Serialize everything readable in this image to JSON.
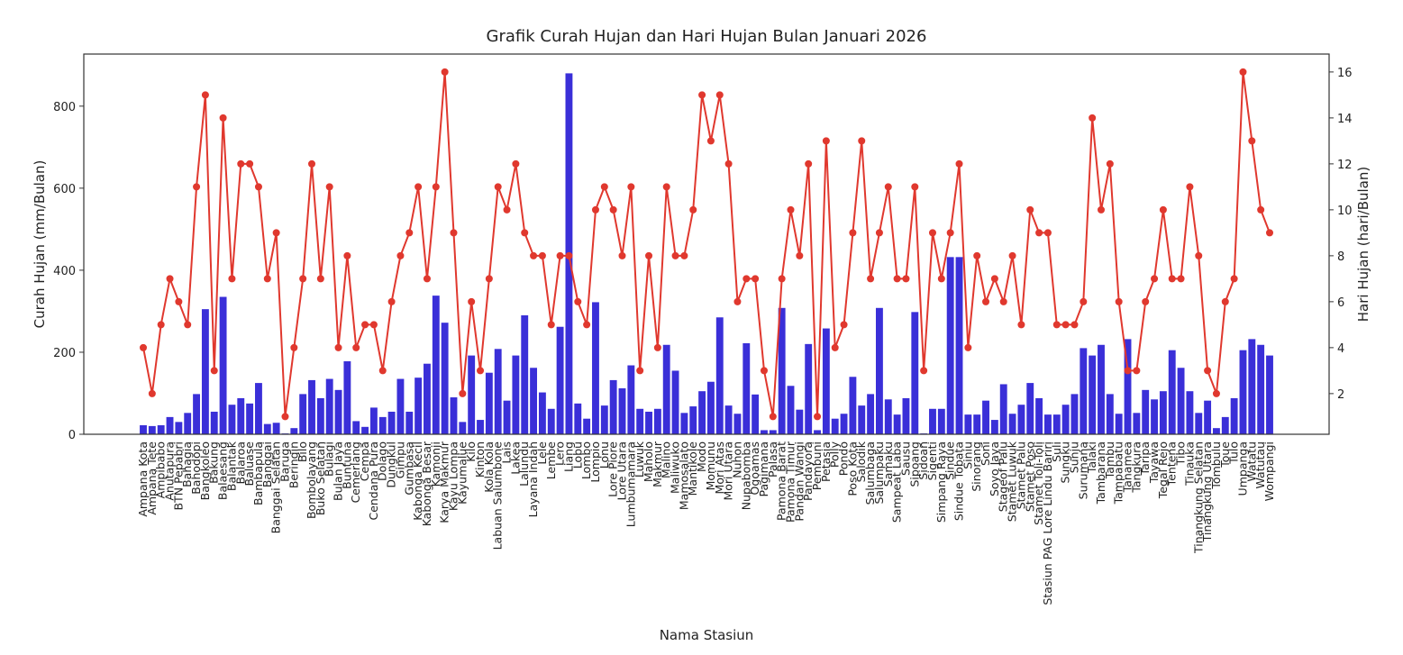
{
  "chart_data": {
    "type": "bar_line",
    "title": "Grafik Curah Hujan dan Hari Hujan Bulan Januari 2026",
    "xlabel": "Nama Stasiun",
    "ylabel": "Curah Hujan (mm/Bulan)",
    "y2label": "Hari Hujan (hari/Bulan)",
    "categories": [
      "Ampana Kota",
      "Ampana Tete",
      "Ampibabo",
      "Anutapura",
      "BTN Pepabri",
      "Bahagia",
      "Bahodopi",
      "Bangkoleo",
      "Bakung",
      "Balaesang",
      "Balantak",
      "Balaroa",
      "Baluase",
      "Bambapula",
      "Banggai",
      "Banggai Selatan",
      "Baruga",
      "Beringin",
      "Bilo",
      "Bombolayang",
      "Buko Selatan",
      "Bulagi",
      "Bulan Jaya",
      "Buntuna",
      "Cemerlang",
      "Cempa",
      "Cendana Pura",
      "Dolago",
      "Dungkul",
      "Gimpu",
      "Gumbasa",
      "Kabonga Kecil",
      "Kabonga Besar",
      "Kamonji",
      "Karya Makmur",
      "Kayu Lompa",
      "Kayumalue",
      "Kilo",
      "Kinton",
      "Kola Kola",
      "Labuan Salumbone",
      "Lais",
      "Lakea",
      "Lalundu",
      "Layana Indah",
      "Lele",
      "Lembe",
      "Lero",
      "Liang",
      "Lobu",
      "Lombo",
      "Lompio",
      "Lonu",
      "Lore Piore",
      "Lore Utara",
      "Lumbumamara",
      "Luwuk",
      "Maholo",
      "Makmur",
      "Malino",
      "Maliwuko",
      "Mamosalato",
      "Mantikole",
      "Modo",
      "Momunu",
      "Mori Atas",
      "Mori Utara",
      "Nuhon",
      "Nupabomba",
      "Ogoamas",
      "Pagimana",
      "Palasa",
      "Pamona Barat",
      "Pamona Timur",
      "Pandan Wangi",
      "Pandayora",
      "Pembuni",
      "Petasia",
      "Polly",
      "Pondo",
      "Poso Kota",
      "Salodik",
      "Salumbaga",
      "Salumpaku",
      "Samaku",
      "Sampeat Laba",
      "Sausu",
      "Sipoang",
      "Sidoan",
      "Sigenti",
      "Simpang Raya",
      "Sindue",
      "Sindue Tobata",
      "Siniu",
      "Sinorang",
      "Soni",
      "Soyo Jaya",
      "Stageof Palu",
      "Stamet Luwuk",
      "Stamet Palu",
      "Stamet Poso",
      "Stamet Toli-Toli",
      "Stasiun PAG Lore Lindu Bariri",
      "Suli",
      "Sungku",
      "Sunju",
      "Surumana",
      "Talaki",
      "Tambarana",
      "Tambu",
      "Tampabatu",
      "Tanamea",
      "Tangkura",
      "Taripa",
      "Tayawa",
      "Tegal Rejo",
      "Tentena",
      "Tibo",
      "Tinauka",
      "Tinangkung Selatan",
      "Tinangkung Utara",
      "Tombulu",
      "Toue",
      "Tulo",
      "Umpanga",
      "Watatu",
      "Watutau",
      "Wompangi"
    ],
    "series": [
      {
        "type": "bar",
        "color": "#3a2fd8",
        "values": [
          22,
          20,
          22,
          42,
          30,
          52,
          98,
          305,
          55,
          335,
          72,
          88,
          75,
          125,
          25,
          28,
          2,
          15,
          98,
          132,
          88,
          135,
          108,
          178,
          32,
          18,
          65,
          42,
          55,
          135,
          55,
          138,
          172,
          338,
          272,
          90,
          30,
          192,
          35,
          150,
          208,
          82,
          192,
          290,
          162,
          102,
          62,
          262,
          880,
          75,
          38,
          322,
          70,
          132,
          112,
          168,
          62,
          55,
          62,
          218,
          155,
          52,
          68,
          105,
          128,
          285,
          70,
          50,
          222,
          97,
          10,
          10,
          308,
          118,
          60,
          220,
          10,
          258,
          38,
          50,
          140,
          70,
          98,
          308,
          85,
          48,
          88,
          298,
          2,
          62,
          62,
          432,
          432,
          48,
          48,
          82,
          35,
          122,
          50,
          72,
          125,
          88,
          48,
          48,
          72,
          98,
          210,
          192,
          218,
          98,
          50,
          232,
          52,
          108,
          85,
          105,
          205,
          162,
          105,
          52,
          82,
          15,
          42,
          88,
          205,
          232,
          218,
          192
        ]
      },
      {
        "type": "line",
        "axis": "y2",
        "color": "#e0382e",
        "values": [
          4,
          2,
          5,
          7,
          6,
          5,
          11,
          15,
          3,
          14,
          7,
          12,
          12,
          11,
          7,
          9,
          1,
          4,
          7,
          12,
          7,
          11,
          4,
          8,
          4,
          5,
          5,
          3,
          6,
          8,
          9,
          11,
          7,
          11,
          16,
          9,
          2,
          6,
          3,
          7,
          11,
          10,
          12,
          9,
          8,
          8,
          5,
          8,
          8,
          6,
          5,
          10,
          11,
          10,
          8,
          11,
          3,
          8,
          4,
          11,
          8,
          8,
          10,
          15,
          13,
          15,
          12,
          6,
          7,
          7,
          3,
          1,
          7,
          10,
          8,
          12,
          1,
          13,
          4,
          5,
          9,
          13,
          7,
          9,
          11,
          7,
          7,
          11,
          3,
          9,
          7,
          9,
          12,
          4,
          8,
          6,
          7,
          6,
          8,
          5,
          10,
          9,
          9,
          5,
          5,
          5,
          6,
          14,
          10,
          12,
          6,
          3,
          3,
          6,
          7,
          10,
          7,
          7,
          11,
          8,
          3,
          2,
          6,
          7,
          16,
          13,
          10,
          9
        ]
      }
    ],
    "ylim": [
      0,
      927
    ],
    "yticks": [
      0,
      200,
      400,
      600,
      800
    ],
    "y2lim": [
      0.23,
      16.78
    ],
    "y2ticks": [
      2,
      4,
      6,
      8,
      10,
      12,
      14,
      16
    ]
  }
}
